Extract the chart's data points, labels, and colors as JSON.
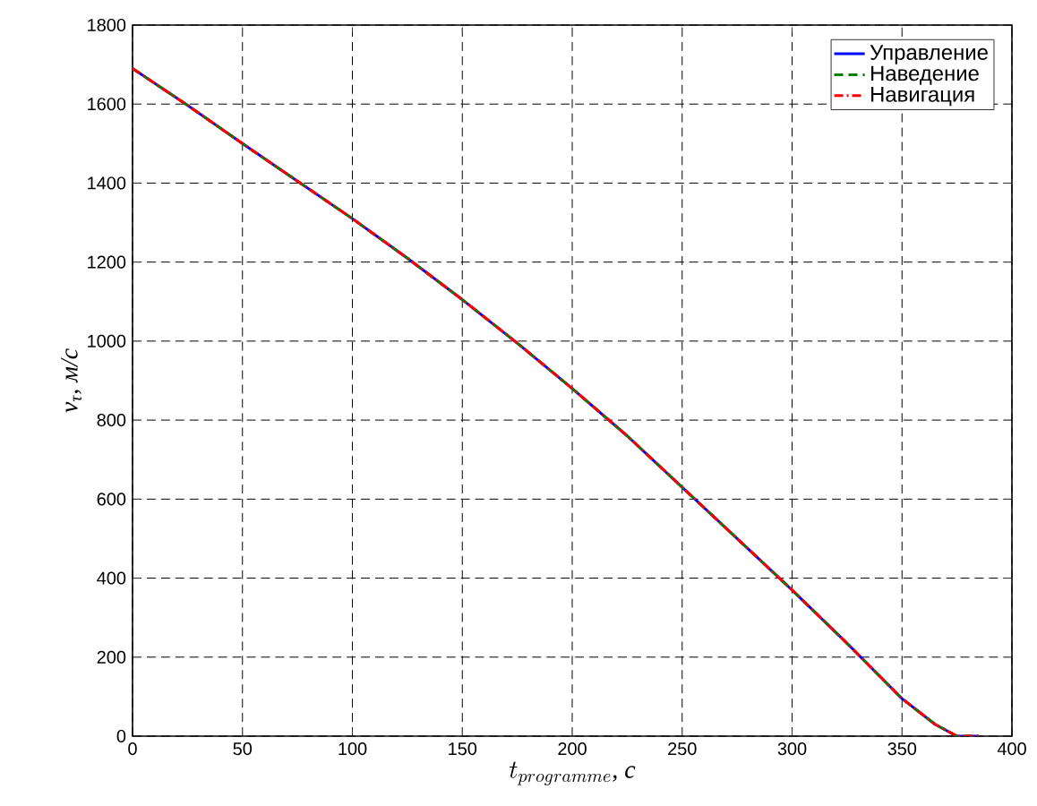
{
  "chart_data": {
    "type": "line",
    "xlabel": "t_{programme}\\text{, с}",
    "ylabel": "v$_{τ}$, м/с",
    "x": [
      0,
      25,
      50,
      75,
      100,
      125,
      150,
      175,
      200,
      225,
      250,
      275,
      300,
      325,
      350,
      365,
      375,
      385
    ],
    "series": [
      {
        "name": "Управление",
        "color": "#0000ff",
        "line_style": "solid",
        "values": [
          1690,
          1597,
          1500,
          1405,
          1310,
          1210,
          1105,
          995,
          880,
          760,
          630,
          500,
          370,
          235,
          95,
          30,
          0,
          0
        ]
      },
      {
        "name": "Наведение",
        "color": "#008000",
        "line_style": "dashed",
        "values": [
          1690,
          1597,
          1500,
          1405,
          1310,
          1210,
          1105,
          995,
          880,
          760,
          630,
          500,
          370,
          235,
          95,
          30,
          0,
          0
        ]
      },
      {
        "name": "Навигация",
        "color": "#ff0000",
        "line_style": "dashdot",
        "values": [
          1690,
          1597,
          1500,
          1405,
          1310,
          1210,
          1105,
          995,
          880,
          760,
          630,
          500,
          370,
          235,
          95,
          30,
          0,
          0
        ]
      }
    ],
    "xlim": [
      0,
      400
    ],
    "ylim": [
      0,
      1800
    ],
    "xticks": [
      0,
      50,
      100,
      150,
      200,
      250,
      300,
      350,
      400
    ],
    "yticks": [
      0,
      200,
      400,
      600,
      800,
      1000,
      1200,
      1400,
      1600,
      1800
    ],
    "grid": true,
    "legend": "top right",
    "marker": "none"
  }
}
